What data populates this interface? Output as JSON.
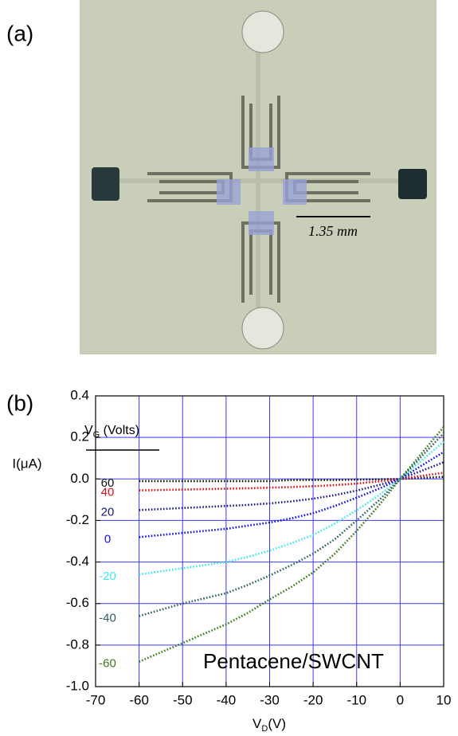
{
  "panel_a": {
    "label": "(a)",
    "scale_label": "1.35 mm"
  },
  "chart_data": {
    "type": "line",
    "panel_label": "(b)",
    "x_label": [
      "V",
      "D",
      "(V)"
    ],
    "y_label": "I(μA)",
    "legend_title": [
      "V",
      "G",
      " (Volts)"
    ],
    "annotation": "Pentacene/SWCNT",
    "xlim": [
      -70,
      10
    ],
    "xticks": [
      -70,
      -60,
      -50,
      -40,
      -30,
      -20,
      -10,
      0,
      10
    ],
    "ylim": [
      -1.0,
      0.4
    ],
    "yticks": [
      0.4,
      0.2,
      {
        "value": 0,
        "label": "0.0"
      },
      -0.2,
      -0.4,
      -0.6,
      -0.8,
      {
        "value": -1,
        "label": "-1.0"
      }
    ],
    "grid": true,
    "grid_color": "#3a3aff",
    "x": [
      -60,
      -55,
      -50,
      -45,
      -40,
      -35,
      -30,
      -25,
      -20,
      -15,
      -10,
      -5,
      0,
      5,
      10
    ],
    "series": [
      {
        "name": "60",
        "color": "#111111",
        "values": [
          -0.01,
          -0.01,
          -0.01,
          -0.01,
          -0.01,
          -0.01,
          -0.01,
          -0.005,
          -0.005,
          -0.005,
          -0.003,
          -0.002,
          0,
          0.005,
          0.01
        ]
      },
      {
        "name": "40",
        "color": "#e01010",
        "values": [
          -0.055,
          -0.053,
          -0.051,
          -0.049,
          -0.047,
          -0.045,
          -0.042,
          -0.039,
          -0.035,
          -0.03,
          -0.022,
          -0.012,
          0,
          0.015,
          0.03
        ]
      },
      {
        "name": "20",
        "color": "#1a1a8c",
        "values": [
          -0.15,
          -0.145,
          -0.14,
          -0.135,
          -0.13,
          -0.125,
          -0.118,
          -0.108,
          -0.095,
          -0.078,
          -0.056,
          -0.03,
          0,
          0.04,
          0.08
        ]
      },
      {
        "name": "0",
        "color": "#1010ee",
        "values": [
          -0.28,
          -0.27,
          -0.26,
          -0.25,
          -0.24,
          -0.225,
          -0.21,
          -0.19,
          -0.165,
          -0.13,
          -0.09,
          -0.048,
          0,
          0.065,
          0.13
        ]
      },
      {
        "name": "-20",
        "color": "#40e8f0",
        "values": [
          -0.46,
          -0.445,
          -0.43,
          -0.415,
          -0.4,
          -0.375,
          -0.345,
          -0.31,
          -0.27,
          -0.215,
          -0.15,
          -0.08,
          0,
          0.09,
          0.18
        ]
      },
      {
        "name": "-40",
        "color": "#2f6060",
        "values": [
          -0.66,
          -0.63,
          -0.6,
          -0.575,
          -0.55,
          -0.51,
          -0.465,
          -0.415,
          -0.36,
          -0.29,
          -0.2,
          -0.105,
          0,
          0.11,
          0.22
        ]
      },
      {
        "name": "-60",
        "color": "#3a7a1a",
        "values": [
          -0.88,
          -0.835,
          -0.79,
          -0.745,
          -0.7,
          -0.645,
          -0.58,
          -0.52,
          -0.45,
          -0.36,
          -0.25,
          -0.13,
          0,
          0.125,
          0.25
        ]
      }
    ]
  }
}
